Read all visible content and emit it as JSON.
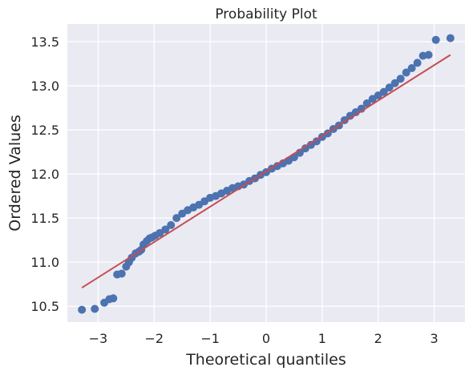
{
  "chart_data": {
    "type": "scatter",
    "title": "Probability Plot",
    "xlabel": "Theoretical quantiles",
    "ylabel": "Ordered Values",
    "xlim": [
      -3.55,
      3.55
    ],
    "ylim": [
      10.32,
      13.7
    ],
    "xticks": [
      -3,
      -2,
      -1,
      0,
      1,
      2,
      3
    ],
    "xtick_labels": [
      "−3",
      "−2",
      "−1",
      "0",
      "1",
      "2",
      "3"
    ],
    "yticks": [
      10.5,
      11.0,
      11.5,
      12.0,
      12.5,
      13.0,
      13.5
    ],
    "ytick_labels": [
      "10.5",
      "11.0",
      "11.5",
      "12.0",
      "12.5",
      "13.0",
      "13.5"
    ],
    "grid": true,
    "series": [
      {
        "kind": "points",
        "color": "#4c72b0",
        "x": [
          -3.29,
          -3.06,
          -2.89,
          -2.8,
          -2.73,
          -2.66,
          -2.58,
          -2.5,
          -2.45,
          -2.4,
          -2.33,
          -2.27,
          -2.23,
          -2.19,
          -2.13,
          -2.08,
          -2.04,
          -1.98,
          -1.9,
          -1.8,
          -1.7,
          -1.6,
          -1.5,
          -1.4,
          -1.3,
          -1.2,
          -1.1,
          -1.0,
          -0.9,
          -0.8,
          -0.7,
          -0.6,
          -0.5,
          -0.4,
          -0.3,
          -0.2,
          -0.1,
          0.0,
          0.1,
          0.2,
          0.3,
          0.4,
          0.5,
          0.6,
          0.7,
          0.8,
          0.9,
          1.0,
          1.1,
          1.2,
          1.3,
          1.4,
          1.5,
          1.6,
          1.7,
          1.8,
          1.9,
          2.0,
          2.1,
          2.2,
          2.3,
          2.4,
          2.5,
          2.6,
          2.7,
          2.8,
          2.9,
          3.03,
          3.29
        ],
        "y": [
          10.46,
          10.47,
          10.54,
          10.58,
          10.59,
          10.86,
          10.87,
          10.95,
          11.0,
          11.05,
          11.1,
          11.12,
          11.14,
          11.2,
          11.24,
          11.27,
          11.28,
          11.3,
          11.33,
          11.37,
          11.42,
          11.5,
          11.55,
          11.59,
          11.62,
          11.65,
          11.69,
          11.73,
          11.75,
          11.78,
          11.81,
          11.84,
          11.86,
          11.88,
          11.92,
          11.95,
          11.99,
          12.02,
          12.06,
          12.09,
          12.12,
          12.15,
          12.19,
          12.24,
          12.29,
          12.33,
          12.37,
          12.42,
          12.46,
          12.51,
          12.55,
          12.61,
          12.66,
          12.7,
          12.74,
          12.8,
          12.85,
          12.89,
          12.93,
          12.98,
          13.03,
          13.08,
          13.15,
          13.2,
          13.26,
          13.34,
          13.35,
          13.52,
          13.54
        ]
      },
      {
        "kind": "fit-line",
        "color": "#c44e52",
        "x": [
          -3.29,
          3.29
        ],
        "y": [
          10.71,
          13.35
        ]
      }
    ]
  }
}
